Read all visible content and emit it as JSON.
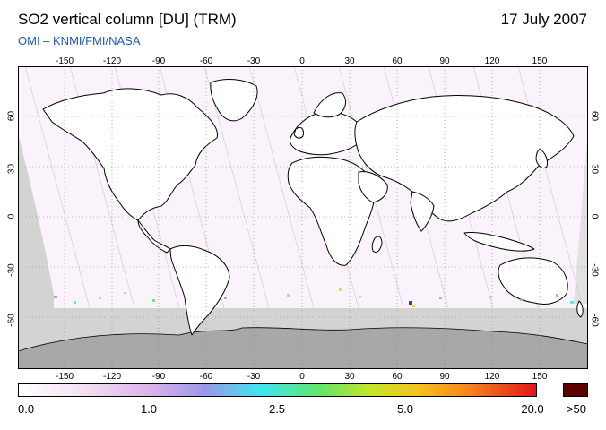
{
  "header": {
    "title": "SO2 vertical column [DU] (TRM)",
    "date": "17 July 2007",
    "subtitle": "OMI  –  KNMI/FMI/NASA"
  },
  "map": {
    "lon_ticks": [
      "-150",
      "-120",
      "-90",
      "-60",
      "-30",
      "0",
      "30",
      "60",
      "90",
      "120",
      "150"
    ],
    "lat_ticks": [
      "60",
      "30",
      "0",
      "-30",
      "-60"
    ],
    "gridlines": true,
    "colors": {
      "no_data": "#d3d3d3",
      "antarctica": "#a8a8a8",
      "coastline": "#000000",
      "background_tint": "#fbf3fb"
    }
  },
  "colorbar": {
    "labels": [
      "0.0",
      "1.0",
      "2.5",
      "5.0",
      "20.0",
      ">50"
    ],
    "stops": [
      "#ffffff",
      "#f2dcf2",
      "#d9b0ec",
      "#9a98e8",
      "#3fe6ef",
      "#5fe66a",
      "#c6e628",
      "#f6c21c",
      "#f77d1d",
      "#e0141c"
    ],
    "overflow_color": "#5a0000"
  }
}
